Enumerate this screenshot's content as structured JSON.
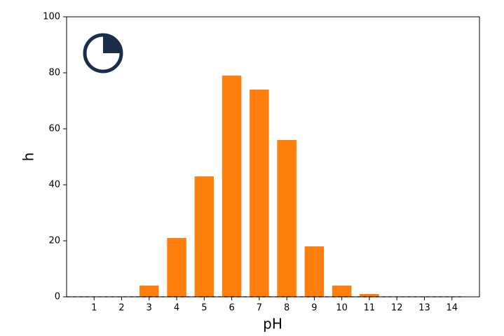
{
  "chart_data": {
    "type": "bar",
    "xlabel": "pH",
    "ylabel": "h",
    "x": [
      1,
      2,
      3,
      4,
      5,
      6,
      7,
      8,
      9,
      10,
      11,
      12,
      13,
      14
    ],
    "values": [
      0,
      0,
      4,
      21,
      43,
      79,
      74,
      56,
      18,
      4,
      1,
      0,
      0,
      0
    ],
    "color": "#ff7f0e",
    "bar_width": 0.7,
    "xlim": [
      0,
      15
    ],
    "xticks": [
      1,
      2,
      3,
      4,
      5,
      6,
      7,
      8,
      9,
      10,
      11,
      12,
      13,
      14
    ],
    "ylim": [
      0,
      100
    ],
    "yticks": [
      0,
      20,
      40,
      60,
      80,
      100
    ],
    "baseline": 0,
    "grid": false
  }
}
